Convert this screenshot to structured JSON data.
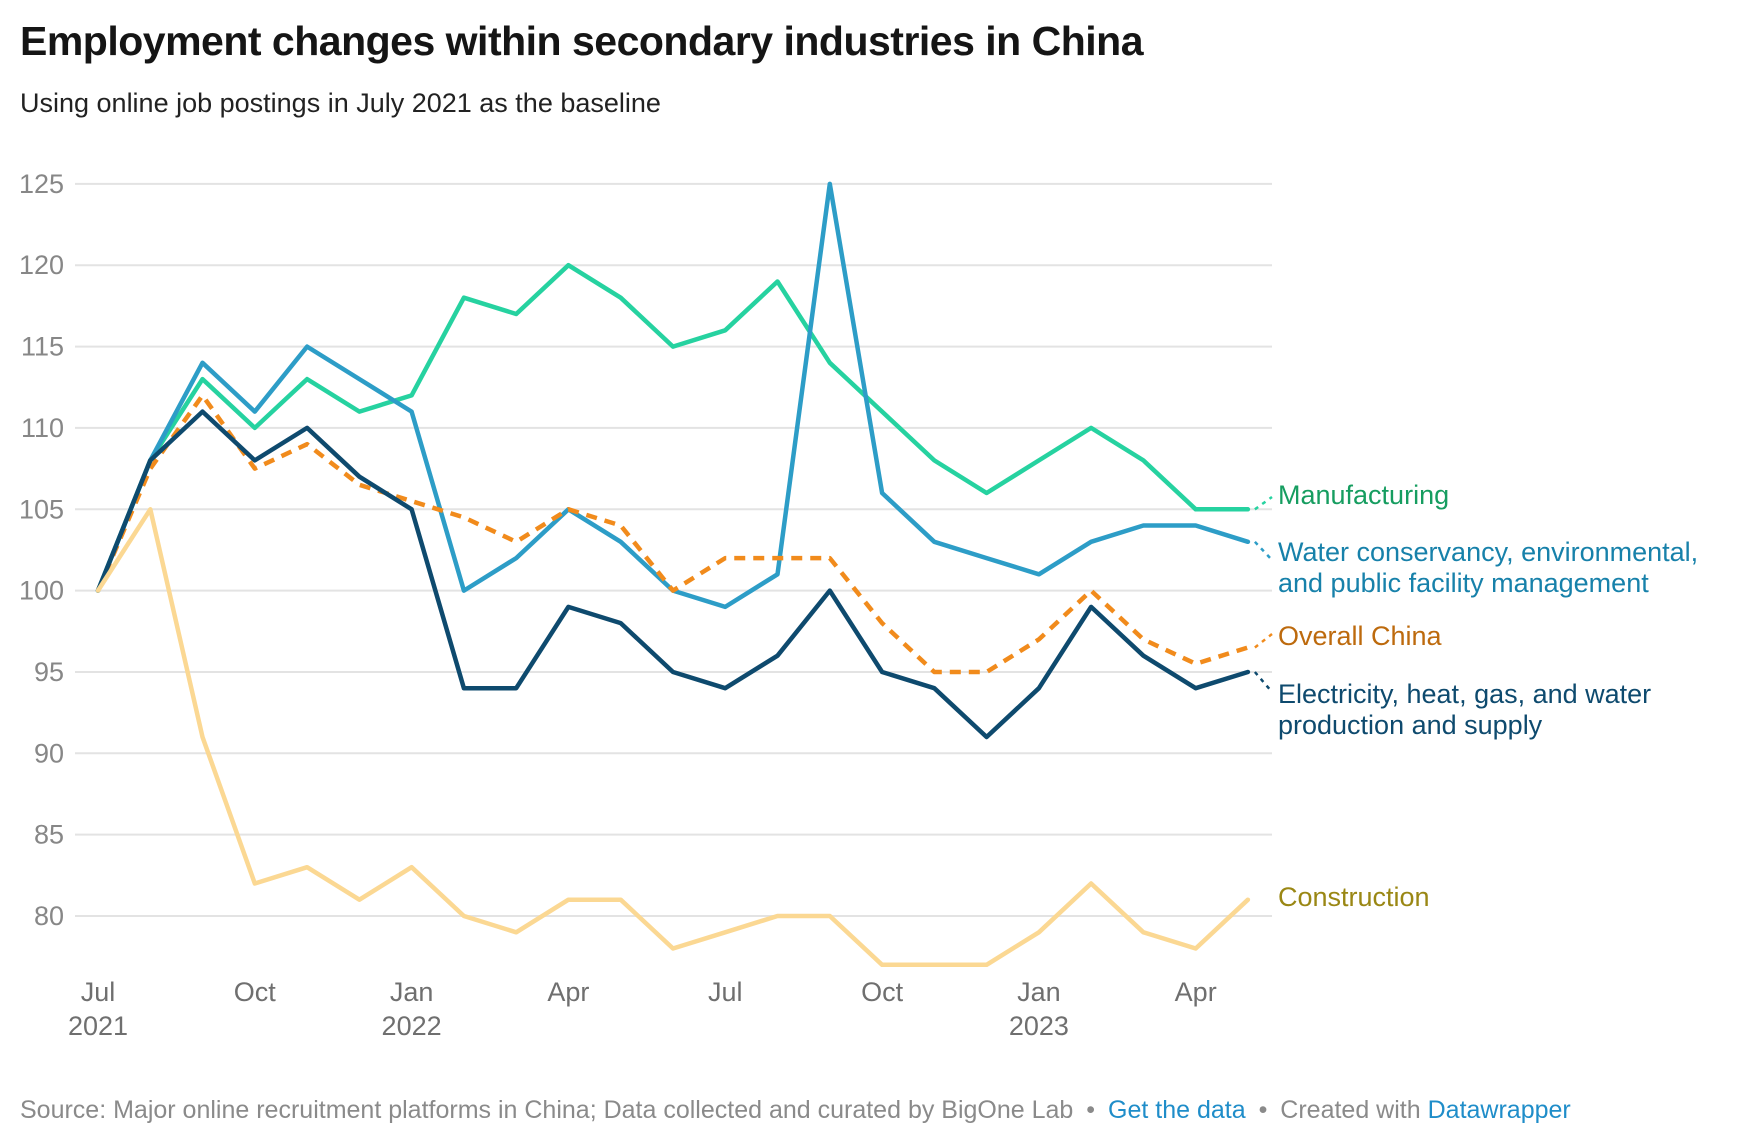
{
  "header": {
    "title": "Employment changes within secondary industries in China",
    "subtitle": "Using online job postings in July 2021 as the baseline"
  },
  "chart_data": {
    "type": "line",
    "title": "Employment changes within secondary industries in China",
    "subtitle": "Using online job postings in July 2021 as the baseline",
    "baseline_value": 100,
    "x": [
      "Jul 2021",
      "Aug 2021",
      "Sep 2021",
      "Oct 2021",
      "Nov 2021",
      "Dec 2021",
      "Jan 2022",
      "Feb 2022",
      "Mar 2022",
      "Apr 2022",
      "May 2022",
      "Jun 2022",
      "Jul 2022",
      "Aug 2022",
      "Sep 2022",
      "Oct 2022",
      "Nov 2022",
      "Dec 2022",
      "Jan 2023",
      "Feb 2023",
      "Mar 2023",
      "Apr 2023",
      "May 2023"
    ],
    "x_axis": {
      "tick_indices": [
        0,
        3,
        6,
        9,
        12,
        15,
        18,
        21
      ],
      "tick_labels": [
        [
          "Jul",
          "2021"
        ],
        [
          "Oct"
        ],
        [
          "Jan",
          "2022"
        ],
        [
          "Apr"
        ],
        [
          "Jul"
        ],
        [
          "Oct"
        ],
        [
          "Jan",
          "2023"
        ],
        [
          "Apr"
        ]
      ]
    },
    "y_axis": {
      "min": 80,
      "max": 125,
      "step": 5,
      "ticks": [
        125,
        120,
        115,
        110,
        105,
        100,
        95,
        90,
        85,
        80
      ],
      "grid": true
    },
    "legend_position": "right-direct-labels",
    "series": [
      {
        "name": "Manufacturing",
        "label": "Manufacturing",
        "color": "#26d2a0",
        "label_color": "#169d60",
        "dashed": false,
        "values": [
          100,
          108,
          113,
          110,
          113,
          111,
          112,
          118,
          117,
          120,
          118,
          115,
          116,
          119,
          114,
          111,
          108,
          106,
          108,
          110,
          108,
          105,
          105
        ]
      },
      {
        "name": "Water conservancy, environmental, and public facility management",
        "label": "Water conservancy, environmental,\nand public facility management",
        "color": "#2d9dc7",
        "label_color": "#1781aa",
        "dashed": false,
        "values": [
          100,
          108,
          114,
          111,
          115,
          113,
          111,
          100,
          102,
          105,
          103,
          100,
          99,
          101,
          125,
          106,
          103,
          102,
          101,
          103,
          104,
          104,
          103
        ]
      },
      {
        "name": "Overall China",
        "label": "Overall China",
        "color": "#f18b1c",
        "label_color": "#bd6a0d",
        "dashed": true,
        "values": [
          100,
          107.5,
          112,
          107.5,
          109,
          106.5,
          105.5,
          104.5,
          103,
          105,
          104,
          100,
          102,
          102,
          102,
          98,
          95,
          95,
          97,
          100,
          97,
          95.5,
          96.5
        ]
      },
      {
        "name": "Electricity, heat, gas, and water production and supply",
        "label": "Electricity, heat, gas, and water\nproduction and supply",
        "color": "#0e4a6e",
        "label_color": "#0e4a6e",
        "dashed": false,
        "values": [
          100,
          108,
          111,
          108,
          110,
          107,
          105,
          94,
          94,
          99,
          98,
          95,
          94,
          96,
          100,
          95,
          94,
          91,
          94,
          99,
          96,
          94,
          95
        ]
      },
      {
        "name": "Construction",
        "label": "Construction",
        "color": "#fbd893",
        "label_color": "#9a8714",
        "dashed": false,
        "values": [
          100,
          105,
          91,
          82,
          83,
          81,
          83,
          80,
          79,
          81,
          81,
          78,
          79,
          80,
          80,
          77,
          77,
          77,
          79,
          82,
          79,
          78,
          81
        ]
      }
    ]
  },
  "footer": {
    "source_text": "Source: Major online recruitment platforms in China; Data collected and curated by BigOne Lab",
    "separator": "•",
    "get_data_link": "Get the data",
    "created_with": "Created with",
    "tool_link": "Datawrapper"
  }
}
